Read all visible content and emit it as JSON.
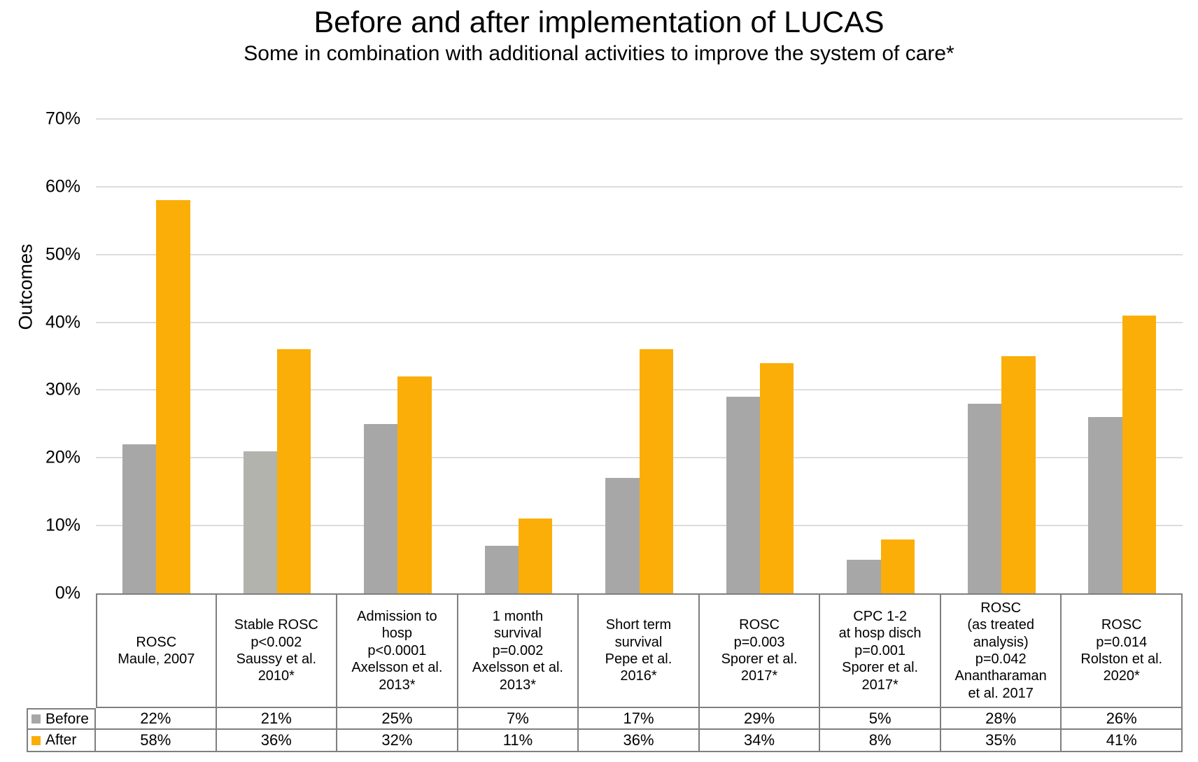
{
  "title": "Before and after implementation of LUCAS",
  "subtitle": "Some in combination with additional activities to improve the system of care*",
  "colors": {
    "before": "#A7A7A7",
    "after": "#FBAE08",
    "gridline": "#DCDCDC",
    "table_border": "#7F7F7F",
    "text": "#000000"
  },
  "chart_data": {
    "type": "bar",
    "title": "Before and after implementation of LUCAS",
    "subtitle": "Some in combination with additional activities to improve the system of care*",
    "xlabel": "",
    "ylabel": "Outcomes",
    "ylim": [
      0,
      70
    ],
    "ytick_step": 10,
    "yticks": [
      0,
      10,
      20,
      30,
      40,
      50,
      60,
      70
    ],
    "ytick_labels": [
      "0%",
      "10%",
      "20%",
      "30%",
      "40%",
      "50%",
      "60%",
      "70%"
    ],
    "grid": true,
    "legend_position": "table-left",
    "categories": [
      "ROSC\nMaule, 2007",
      "Stable ROSC\np<0.002\nSaussy et al.\n2010*",
      "Admission to\nhosp\np<0.0001\nAxelsson et al.\n2013*",
      "1 month\nsurvival\np=0.002\nAxelsson et al.\n2013*",
      "Short term\nsurvival\nPepe et al.\n2016*",
      "ROSC\np=0.003\nSporer et al.\n2017*",
      "CPC 1-2\nat hosp disch\np=0.001\nSporer et al.\n2017*",
      "ROSC\n(as treated\nanalysis)\np=0.042\nAnantharaman\net al. 2017",
      "ROSC\np=0.014\nRolston et al.\n2020*"
    ],
    "series": [
      {
        "name": "Before",
        "color": "#A7A7A7",
        "bar_colors": [
          null,
          "#B3B3AD",
          null,
          null,
          null,
          null,
          null,
          null,
          null
        ],
        "values": [
          22,
          21,
          25,
          7,
          17,
          29,
          5,
          28,
          26
        ],
        "labels": [
          "22%",
          "21%",
          "25%",
          "7%",
          "17%",
          "29%",
          "5%",
          "28%",
          "26%"
        ]
      },
      {
        "name": "After",
        "color": "#FBAE08",
        "bar_colors": [
          null,
          null,
          null,
          null,
          null,
          null,
          null,
          null,
          null
        ],
        "values": [
          58,
          36,
          32,
          11,
          36,
          34,
          8,
          35,
          41
        ],
        "labels": [
          "58%",
          "36%",
          "32%",
          "11%",
          "36%",
          "34%",
          "8%",
          "35%",
          "41%"
        ]
      }
    ]
  }
}
